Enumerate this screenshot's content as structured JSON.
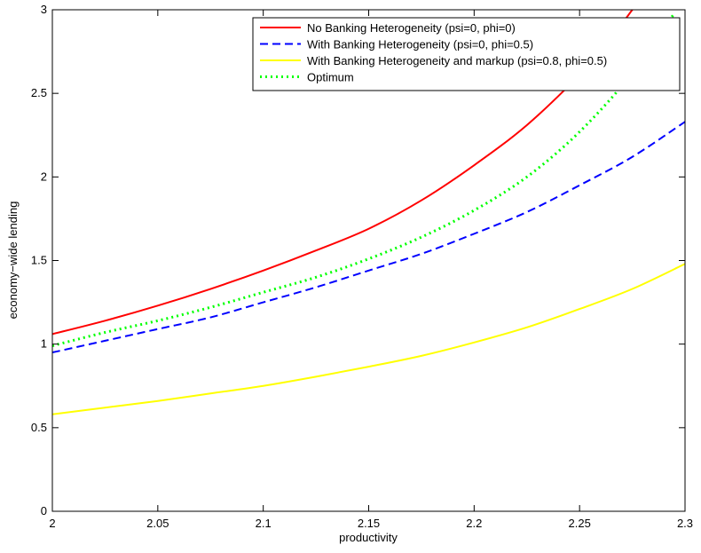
{
  "chart_data": {
    "type": "line",
    "title": "",
    "xlabel": "productivity",
    "ylabel": "economy−wide lending",
    "xlim": [
      2,
      2.3
    ],
    "ylim": [
      0,
      3
    ],
    "x_ticks": [
      "2",
      "2.05",
      "2.1",
      "2.15",
      "2.2",
      "2.25",
      "2.3"
    ],
    "y_ticks": [
      "0",
      "0.5",
      "1",
      "1.5",
      "2",
      "2.5",
      "3"
    ],
    "grid": false,
    "legend_position": "top-right",
    "series": [
      {
        "name": "No Banking Heterogeneity (psi=0, phi=0)",
        "color": "#ff0000",
        "style": "solid",
        "x": [
          2.0,
          2.025,
          2.05,
          2.075,
          2.1,
          2.125,
          2.15,
          2.175,
          2.2,
          2.225,
          2.25,
          2.2625,
          2.275
        ],
        "y": [
          1.06,
          1.14,
          1.23,
          1.33,
          1.44,
          1.56,
          1.69,
          1.86,
          2.07,
          2.31,
          2.61,
          2.79,
          3.0
        ]
      },
      {
        "name": "With Banking Heterogeneity (psi=0, phi=0.5)",
        "color": "#0000ff",
        "style": "dashed",
        "x": [
          2.0,
          2.025,
          2.05,
          2.075,
          2.1,
          2.125,
          2.15,
          2.175,
          2.2,
          2.225,
          2.25,
          2.275,
          2.3
        ],
        "y": [
          0.95,
          1.02,
          1.09,
          1.16,
          1.25,
          1.34,
          1.44,
          1.54,
          1.66,
          1.79,
          1.95,
          2.12,
          2.33
        ]
      },
      {
        "name": "With Banking Heterogeneity and markup (psi=0.8, phi=0.5)",
        "color": "#ffff00",
        "style": "solid",
        "x": [
          2.0,
          2.025,
          2.05,
          2.075,
          2.1,
          2.125,
          2.15,
          2.175,
          2.2,
          2.225,
          2.25,
          2.275,
          2.3
        ],
        "y": [
          0.58,
          0.62,
          0.66,
          0.705,
          0.75,
          0.805,
          0.865,
          0.93,
          1.01,
          1.1,
          1.21,
          1.33,
          1.48
        ]
      },
      {
        "name": "Optimum",
        "color": "#00ff00",
        "style": "dotted",
        "x": [
          2.0,
          2.025,
          2.05,
          2.075,
          2.1,
          2.125,
          2.15,
          2.175,
          2.2,
          2.225,
          2.25,
          2.275,
          2.295
        ],
        "y": [
          0.99,
          1.07,
          1.14,
          1.22,
          1.31,
          1.4,
          1.51,
          1.64,
          1.8,
          2.0,
          2.27,
          2.62,
          2.98
        ]
      }
    ]
  }
}
